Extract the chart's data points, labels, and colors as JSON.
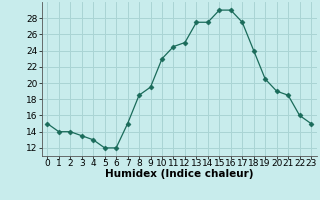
{
  "x": [
    0,
    1,
    2,
    3,
    4,
    5,
    6,
    7,
    8,
    9,
    10,
    11,
    12,
    13,
    14,
    15,
    16,
    17,
    18,
    19,
    20,
    21,
    22,
    23
  ],
  "y": [
    15,
    14,
    14,
    13.5,
    13,
    12,
    12,
    15,
    18.5,
    19.5,
    23,
    24.5,
    25,
    27.5,
    27.5,
    29,
    29,
    27.5,
    24,
    20.5,
    19,
    18.5,
    16,
    15
  ],
  "line_color": "#1a6b5a",
  "marker": "D",
  "marker_size": 2.5,
  "bg_color": "#c8ecec",
  "grid_color": "#aad4d4",
  "xlabel": "Humidex (Indice chaleur)",
  "xlim": [
    -0.5,
    23.5
  ],
  "ylim": [
    11,
    30
  ],
  "yticks": [
    12,
    14,
    16,
    18,
    20,
    22,
    24,
    26,
    28
  ],
  "xticks": [
    0,
    1,
    2,
    3,
    4,
    5,
    6,
    7,
    8,
    9,
    10,
    11,
    12,
    13,
    14,
    15,
    16,
    17,
    18,
    19,
    20,
    21,
    22,
    23
  ],
  "tick_label_fontsize": 6.5,
  "xlabel_fontsize": 7.5
}
